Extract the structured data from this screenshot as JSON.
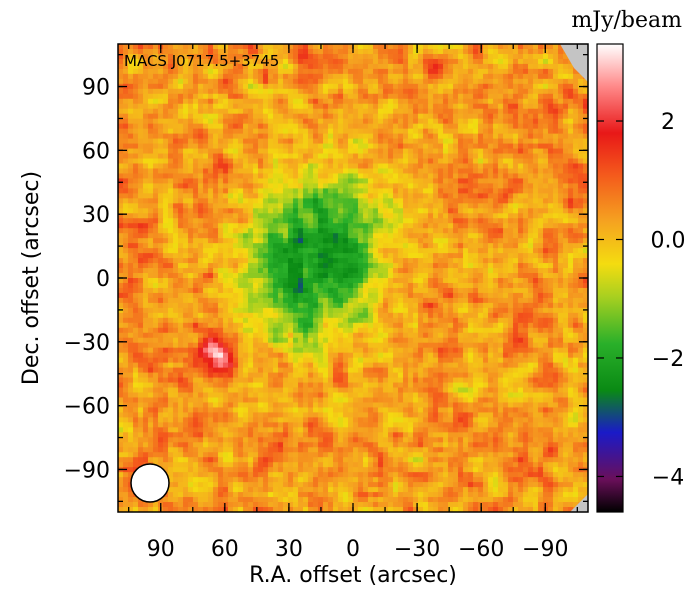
{
  "chart_data": {
    "type": "heatmap",
    "title": "MACS J0717.5+3745",
    "xlabel": "R.A. offset (arcsec)",
    "ylabel": "Dec. offset (arcsec)",
    "colorbar_label": "mJy/beam",
    "x_range": [
      110,
      -110
    ],
    "y_range": [
      -110,
      110
    ],
    "x_ticks": [
      90,
      60,
      30,
      0,
      -30,
      -60,
      -90
    ],
    "x_tick_labels": [
      "90",
      "60",
      "30",
      "0",
      "−30",
      "−60",
      "−90"
    ],
    "y_ticks": [
      90,
      60,
      30,
      0,
      -30,
      -60,
      -90
    ],
    "y_tick_labels": [
      "90",
      "60",
      "30",
      "0",
      "−30",
      "−60",
      "−90"
    ],
    "colorbar_range": [
      -4.6,
      3.3
    ],
    "colorbar_ticks": [
      2,
      0,
      -2,
      -4
    ],
    "colorbar_tick_labels": [
      "2",
      "0.0",
      "−2",
      "−4"
    ],
    "features": [
      {
        "type": "decrement",
        "center_ra": 18,
        "center_dec": 10,
        "peak_mJy_per_beam": -3.0
      },
      {
        "type": "point_source",
        "center_ra": 63,
        "center_dec": -35,
        "peak_mJy_per_beam": 2.5
      }
    ],
    "beam": {
      "ra": 94,
      "dec": -96,
      "diameter_arcsec": 19
    },
    "background_mJy_per_beam": 0.4,
    "noise_rms_mJy_per_beam": 0.5
  }
}
